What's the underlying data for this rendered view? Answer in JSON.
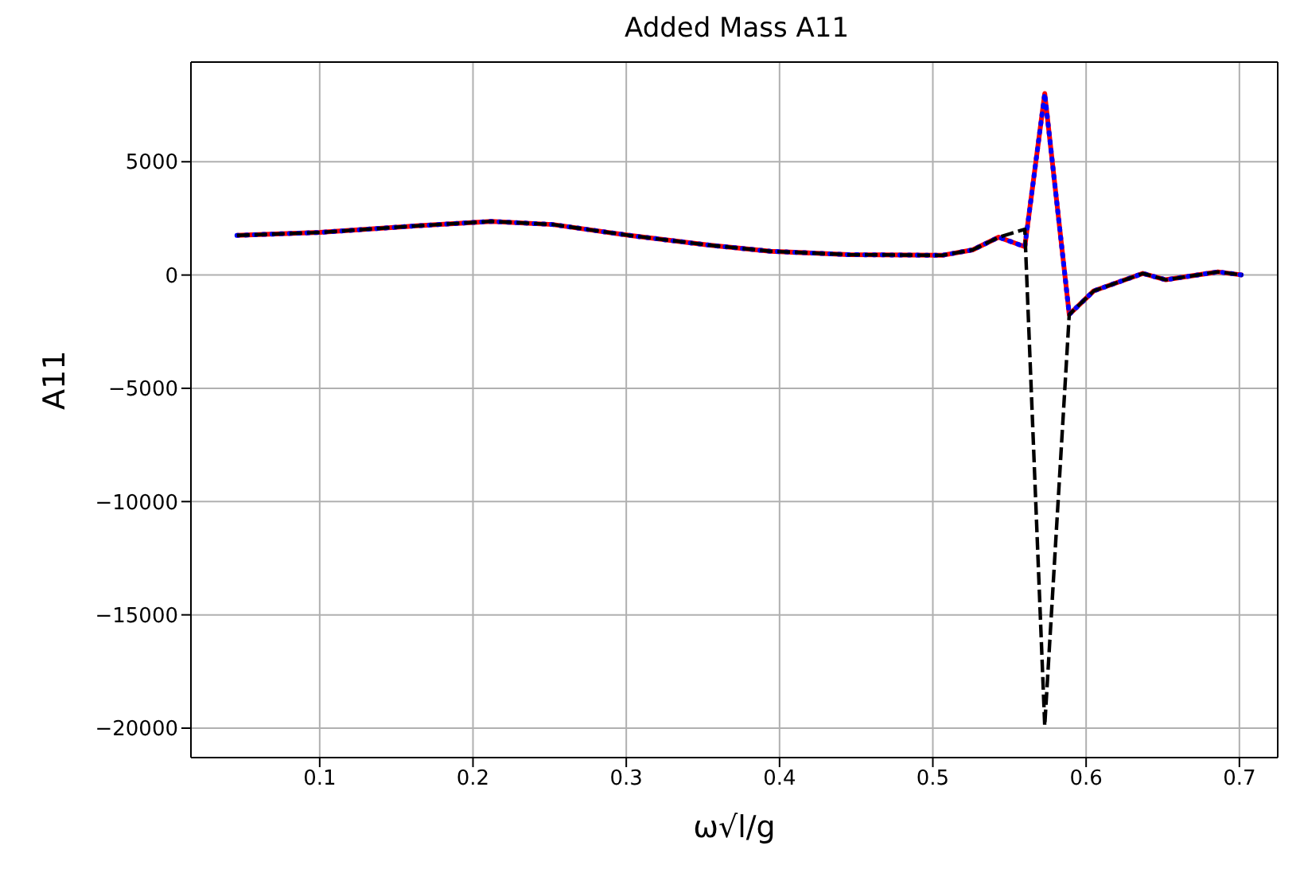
{
  "chart_data": {
    "type": "line",
    "title": "Added Mass A11",
    "xlabel": "ω√l/g",
    "ylabel": "A11",
    "x": [
      0.046,
      0.1,
      0.161,
      0.212,
      0.252,
      0.303,
      0.354,
      0.394,
      0.445,
      0.506,
      0.526,
      0.543,
      0.56,
      0.573,
      0.589,
      0.605,
      0.637,
      0.652,
      0.686,
      0.702
    ],
    "series": [
      {
        "color": "#ff0000",
        "line_style": "solid",
        "values": [
          1750,
          1880,
          2160,
          2370,
          2230,
          1740,
          1320,
          1050,
          900,
          870,
          1110,
          1670,
          1250,
          8010,
          -1740,
          -700,
          70,
          -210,
          140,
          0
        ]
      },
      {
        "color": "#0000ff",
        "line_style": "dotted",
        "values": [
          1750,
          1880,
          2160,
          2370,
          2230,
          1740,
          1320,
          1050,
          900,
          870,
          1110,
          1670,
          1250,
          8010,
          -1740,
          -700,
          70,
          -210,
          140,
          0
        ]
      },
      {
        "color": "#000000",
        "line_style": "dashed",
        "values": [
          1750,
          1880,
          2160,
          2370,
          2230,
          1740,
          1320,
          1050,
          900,
          870,
          1110,
          1670,
          2020,
          -19900,
          -1740,
          -700,
          70,
          -210,
          140,
          0
        ]
      }
    ],
    "xlim": [
      0.016,
      0.725
    ],
    "ylim": [
      -21300,
      9400
    ],
    "xticks": [
      0.1,
      0.2,
      0.3,
      0.4,
      0.5,
      0.6,
      0.7
    ],
    "yticks": [
      -20000,
      -15000,
      -10000,
      -5000,
      0,
      5000
    ],
    "grid": true,
    "legend": false,
    "marker": "none"
  }
}
